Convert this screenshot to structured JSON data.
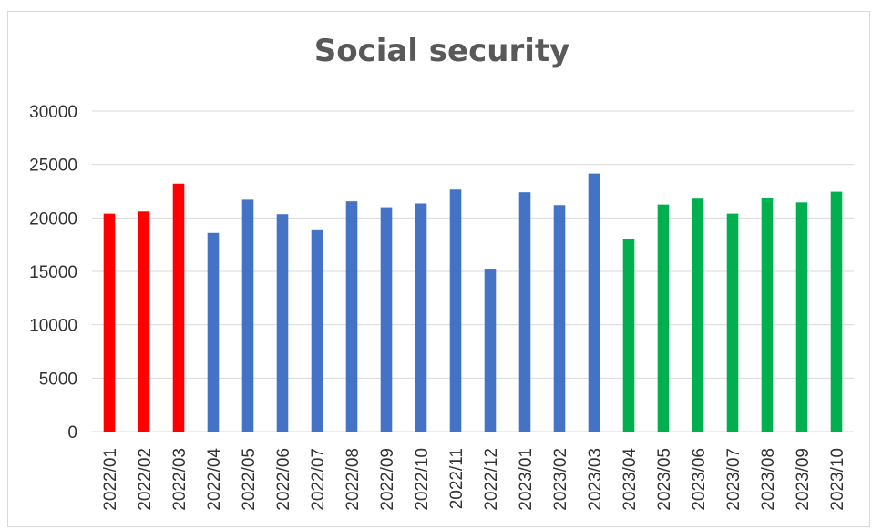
{
  "chart_data": {
    "type": "bar",
    "title": "Social security",
    "xlabel": "",
    "ylabel": "",
    "ylim": [
      0,
      30000
    ],
    "yticks": [
      0,
      5000,
      10000,
      15000,
      20000,
      25000,
      30000
    ],
    "grid": true,
    "legend": "none",
    "categories": [
      "2022/01",
      "2022/02",
      "2022/03",
      "2022/04",
      "2022/05",
      "2022/06",
      "2022/07",
      "2022/08",
      "2022/09",
      "2022/10",
      "2022/11",
      "2022/12",
      "2023/01",
      "2023/02",
      "2023/03",
      "2023/04",
      "2023/05",
      "2023/06",
      "2023/07",
      "2023/08",
      "2023/09",
      "2023/10"
    ],
    "values": [
      20400,
      20600,
      23200,
      18600,
      21700,
      20350,
      18850,
      21550,
      21000,
      21350,
      22650,
      15250,
      22400,
      21200,
      24150,
      18000,
      21250,
      21800,
      20400,
      21850,
      21450,
      22450
    ],
    "colors": [
      "#ff0000",
      "#ff0000",
      "#ff0000",
      "#4472c4",
      "#4472c4",
      "#4472c4",
      "#4472c4",
      "#4472c4",
      "#4472c4",
      "#4472c4",
      "#4472c4",
      "#4472c4",
      "#4472c4",
      "#4472c4",
      "#4472c4",
      "#00b050",
      "#00b050",
      "#00b050",
      "#00b050",
      "#00b050",
      "#00b050",
      "#00b050"
    ]
  }
}
